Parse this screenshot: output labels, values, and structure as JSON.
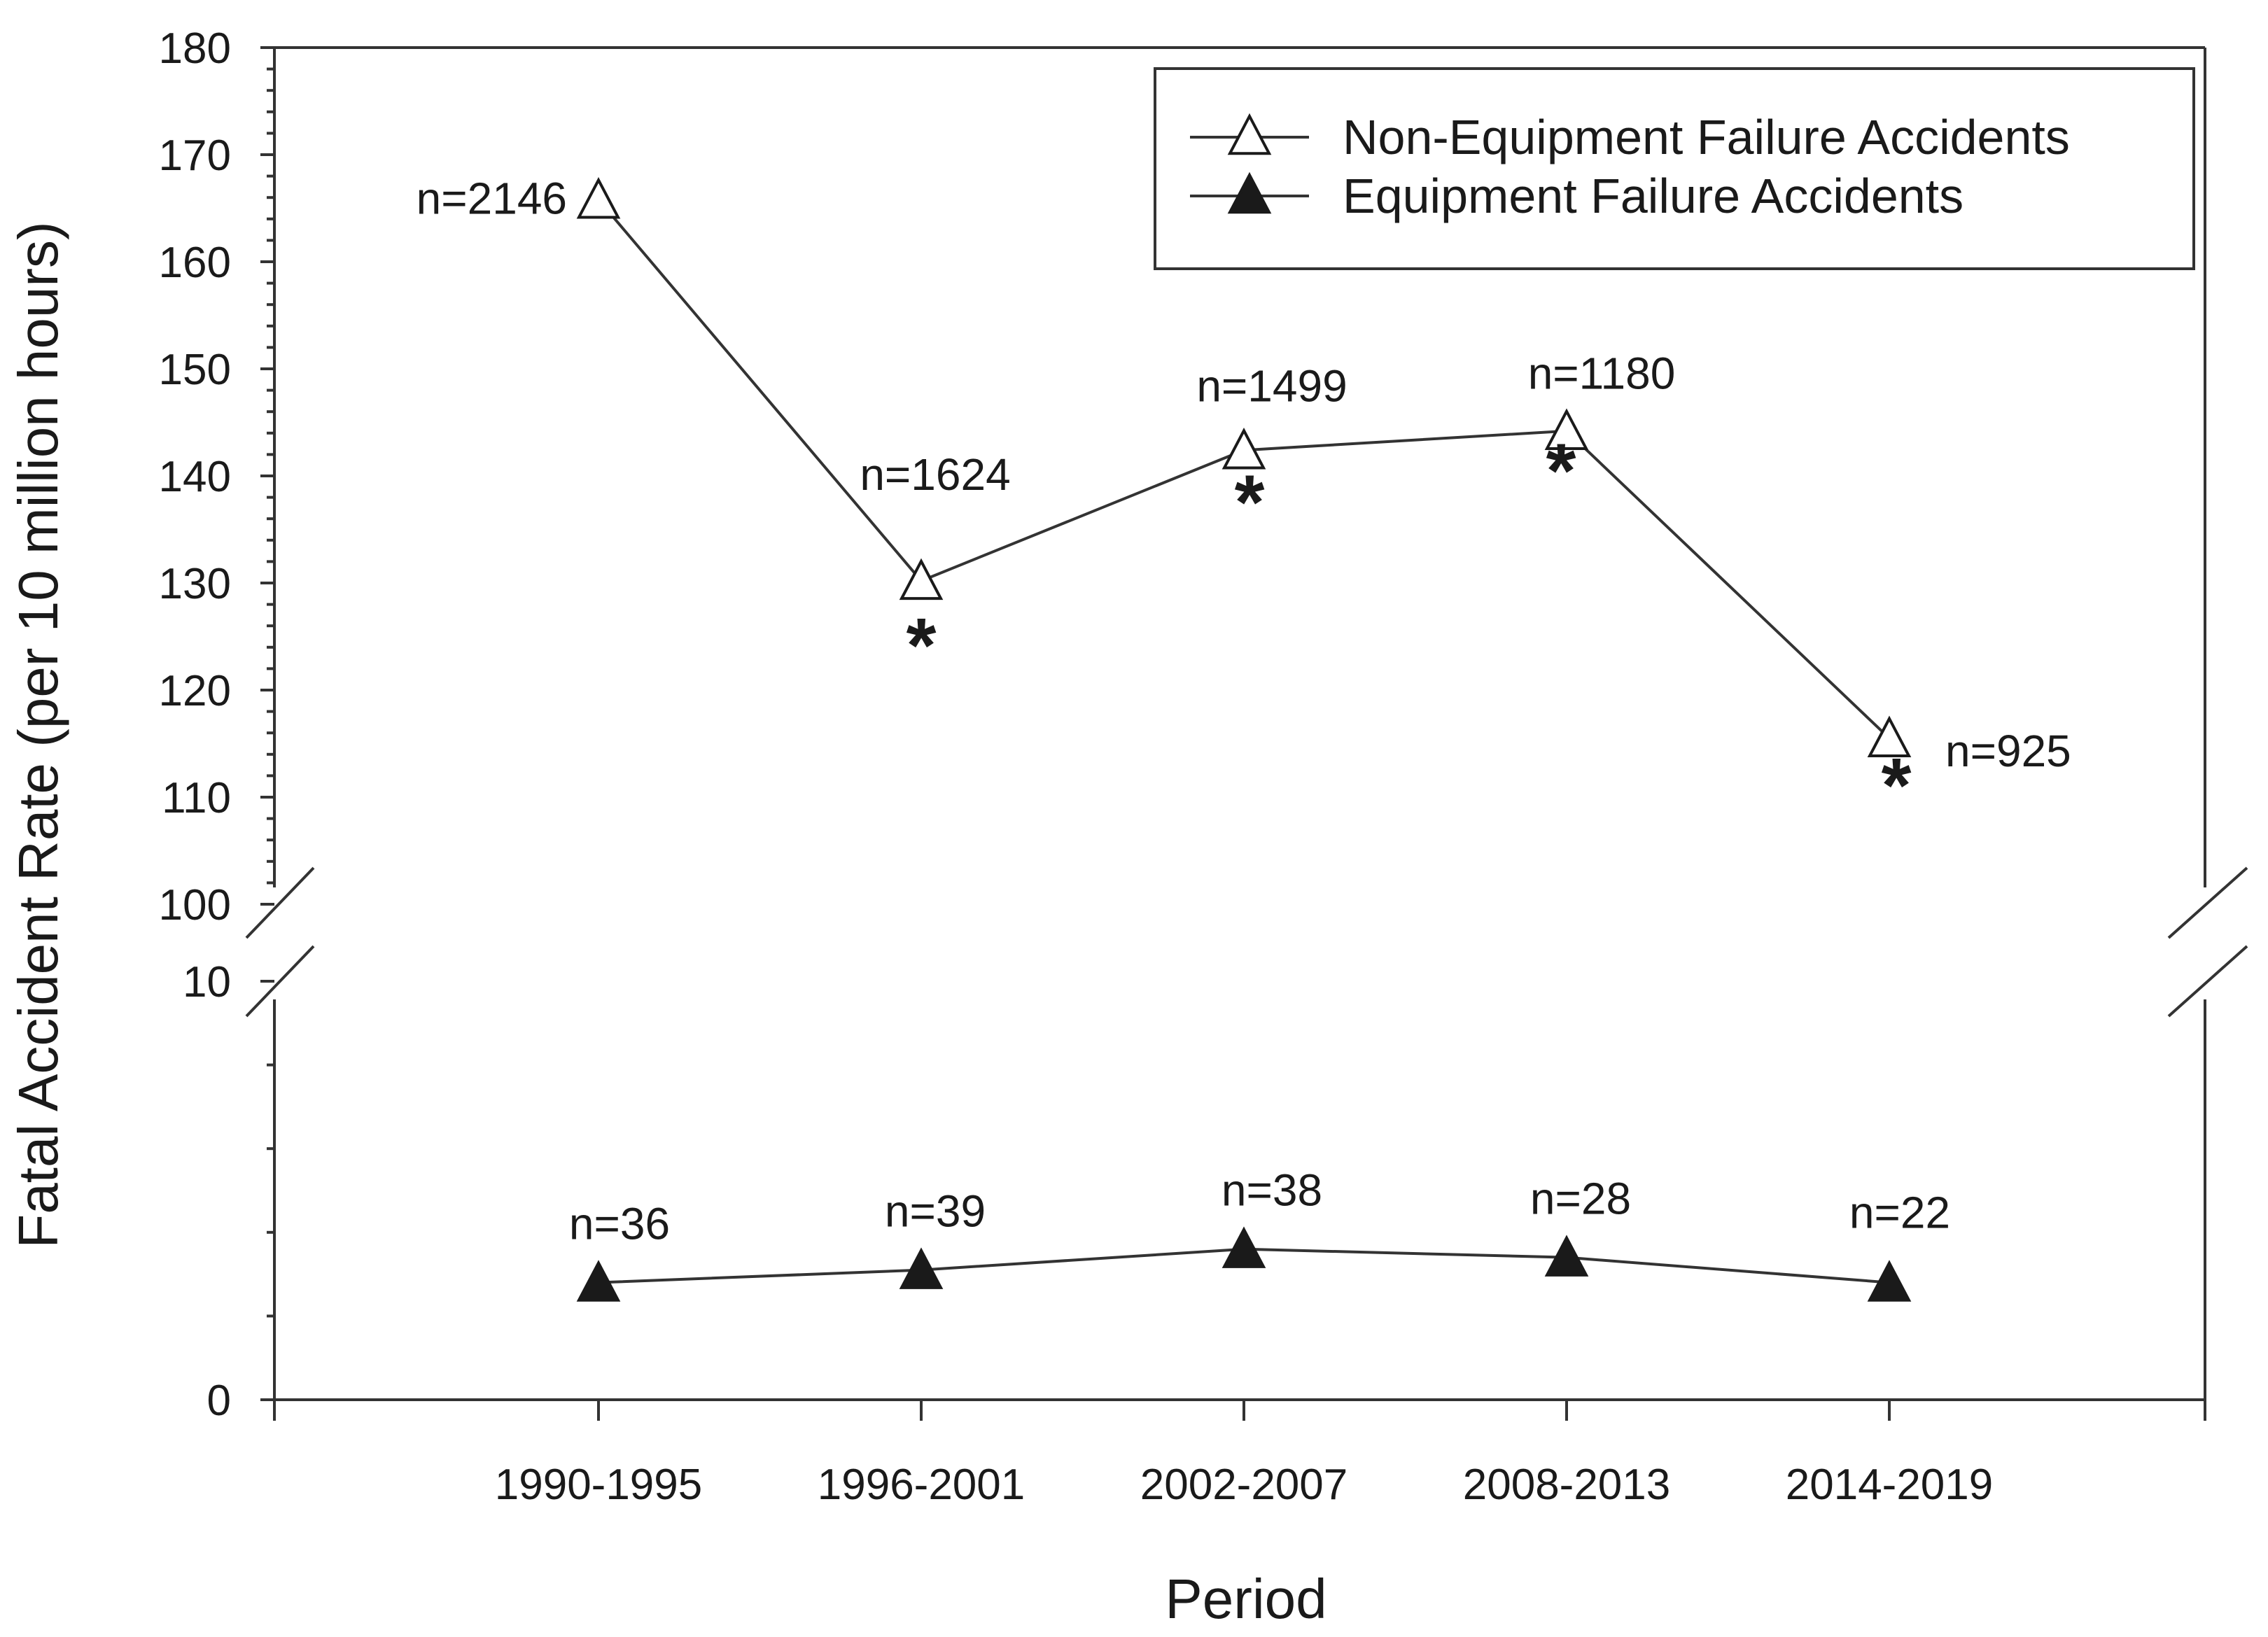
{
  "chart_data": {
    "type": "line",
    "xlabel": "Period",
    "ylabel": "Fatal Accident Rate (per 10 million hours)",
    "categories": [
      "1990-1995",
      "1996-2001",
      "2002-2007",
      "2008-2013",
      "2014-2019"
    ],
    "axis_break": "between 10 and 100",
    "y_lower_segment": {
      "ylim": [
        0,
        10
      ],
      "ticks": [
        "0",
        "10"
      ]
    },
    "y_upper_segment": {
      "ylim": [
        100,
        180
      ],
      "ticks": [
        "100",
        "110",
        "120",
        "130",
        "140",
        "150",
        "160",
        "170",
        "180"
      ]
    },
    "legend_position": "top-right",
    "series": [
      {
        "name": "Non-Equipment Failure Accidents",
        "marker": "open-triangle",
        "values": [
          165.8,
          130.2,
          142.4,
          144.2,
          115.5
        ],
        "n_labels": [
          "n=2146",
          "n=1624",
          "n=1499",
          "n=1180",
          "n=925"
        ],
        "significance": [
          "",
          "*",
          "*",
          "*",
          "*"
        ]
      },
      {
        "name": "Equipment Failure Accidents",
        "marker": "filled-triangle",
        "values": [
          2.8,
          3.1,
          3.6,
          3.4,
          2.8
        ],
        "n_labels": [
          "n=36",
          "n=39",
          "n=38",
          "n=28",
          "n=22"
        ]
      }
    ],
    "colors": {
      "line": "#333333",
      "open_marker_fill": "#ffffff",
      "filled_marker": "#1a1a1a"
    }
  }
}
